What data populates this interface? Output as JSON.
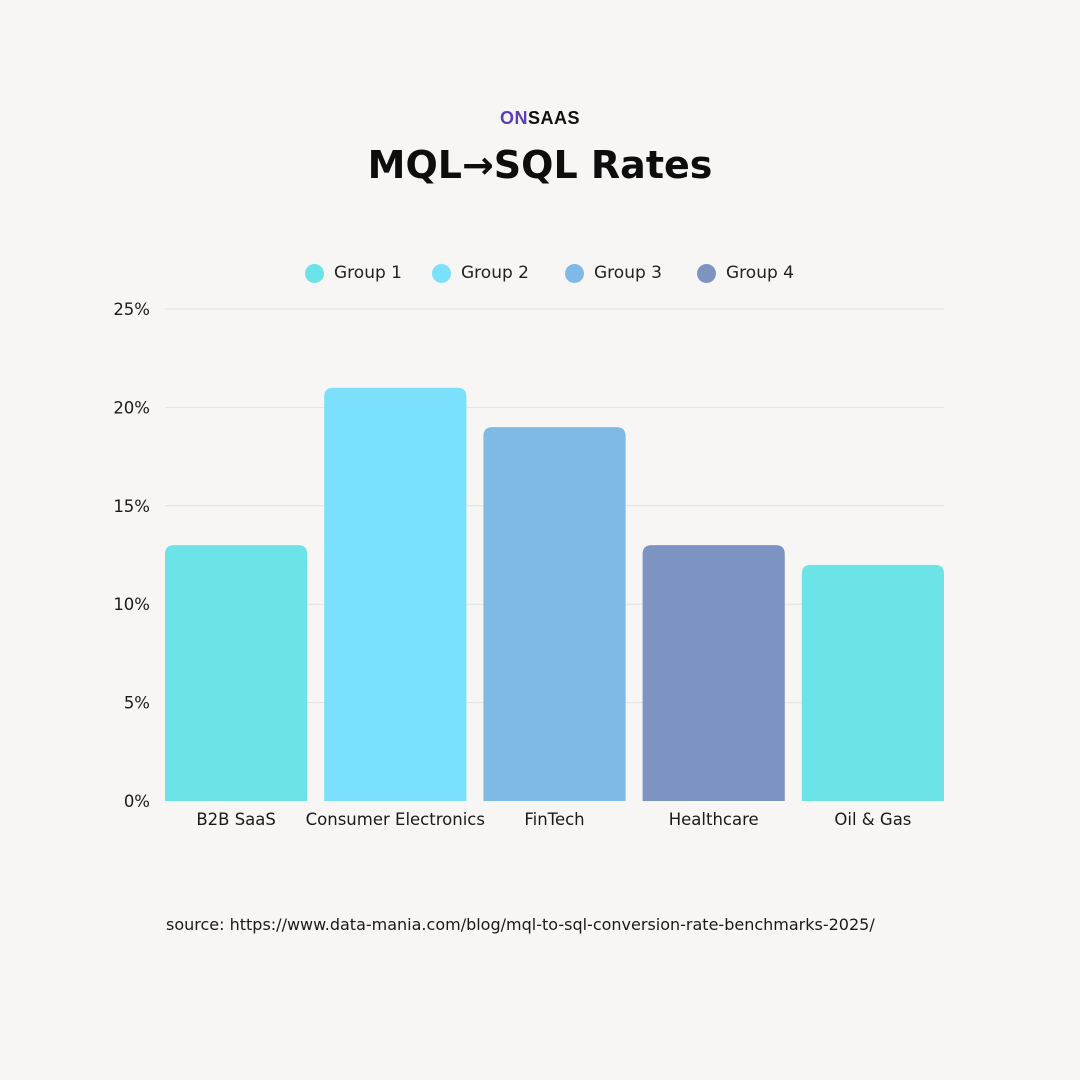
{
  "brand": {
    "prefix": "ON",
    "suffix": "SAAS",
    "prefix_color": "#5b3fb6"
  },
  "title": "MQL→SQL Rates",
  "legend": [
    {
      "label": "Group 1",
      "color": "#6ce3e6"
    },
    {
      "label": "Group 2",
      "color": "#7ae0fc"
    },
    {
      "label": "Group 3",
      "color": "#7fbae7"
    },
    {
      "label": "Group 4",
      "color": "#7d94c3"
    }
  ],
  "chart_data": {
    "type": "bar",
    "title": "MQL→SQL Rates",
    "xlabel": "",
    "ylabel": "",
    "categories": [
      "B2B SaaS",
      "Consumer Electronics",
      "FinTech",
      "Healthcare",
      "Oil & Gas"
    ],
    "values": [
      13,
      21,
      19,
      13,
      12
    ],
    "bar_groups": [
      "Group 1",
      "Group 2",
      "Group 3",
      "Group 4",
      "Group 1"
    ],
    "ylim": [
      0,
      25
    ],
    "yticks": [
      0,
      5,
      10,
      15,
      20,
      25
    ],
    "ytick_labels": [
      "0%",
      "5%",
      "10%",
      "15%",
      "20%",
      "25%"
    ],
    "grid": true,
    "legend_position": "top-center"
  },
  "source": "source: https://www.data-mania.com/blog/mql-to-sql-conversion-rate-benchmarks-2025/"
}
